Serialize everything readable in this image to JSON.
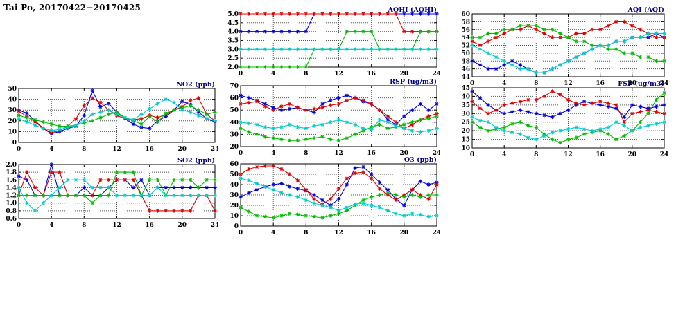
{
  "page": {
    "title": "Tai Po, 20170422−20170425"
  },
  "palette": {
    "chart_title_color": "#000088",
    "series_colors": [
      "#0000dd",
      "#dd0000",
      "#00bb00",
      "#00cccc"
    ]
  },
  "hours": [
    0,
    1,
    2,
    3,
    4,
    5,
    6,
    7,
    8,
    9,
    10,
    11,
    12,
    13,
    14,
    15,
    16,
    17,
    18,
    19,
    20,
    21,
    22,
    23,
    24
  ],
  "chart_data": [
    {
      "id": "aqhi",
      "type": "line",
      "title": "AQHI (AQHI)",
      "xlim": [
        0,
        24
      ],
      "xticks": [
        0,
        4,
        8,
        12,
        16,
        20,
        24
      ],
      "ylim": [
        2.0,
        5.0
      ],
      "yticks": [
        2.0,
        2.5,
        3.0,
        3.5,
        4.0,
        4.5,
        5.0
      ],
      "ytick_labels": [
        "2.0",
        "2.5",
        "3.0",
        "3.5",
        "4.0",
        "4.5",
        "5.0"
      ],
      "grid": true,
      "series": [
        {
          "name": "series-blue",
          "color": "#0000dd",
          "values": [
            4,
            4,
            4,
            4,
            4,
            4,
            4,
            4,
            4,
            5,
            5,
            5,
            5,
            5,
            5,
            5,
            5,
            5,
            5,
            5,
            5,
            5,
            5,
            5,
            5
          ]
        },
        {
          "name": "series-red",
          "color": "#dd0000",
          "values": [
            5,
            5,
            5,
            5,
            5,
            5,
            5,
            5,
            5,
            5,
            5,
            5,
            5,
            5,
            5,
            5,
            5,
            5,
            5,
            5,
            4,
            4,
            4,
            4,
            4
          ]
        },
        {
          "name": "series-green",
          "color": "#00bb00",
          "values": [
            2,
            2,
            2,
            2,
            2,
            2,
            2,
            2,
            2,
            3,
            3,
            3,
            3,
            4,
            4,
            4,
            4,
            3,
            3,
            3,
            3,
            3,
            4,
            4,
            4
          ]
        },
        {
          "name": "series-cyan",
          "color": "#00cccc",
          "values": [
            3,
            3,
            3,
            3,
            3,
            3,
            3,
            3,
            3,
            3,
            3,
            3,
            3,
            3,
            3,
            3,
            3,
            3,
            3,
            3,
            3,
            3,
            3,
            3,
            3
          ]
        }
      ]
    },
    {
      "id": "aqi",
      "type": "line",
      "title": "AQI (AQI)",
      "xlim": [
        0,
        24
      ],
      "xticks": [
        0,
        4,
        8,
        12,
        16,
        20,
        24
      ],
      "ylim": [
        44,
        60
      ],
      "yticks": [
        44,
        46,
        48,
        50,
        52,
        54,
        56,
        58,
        60
      ],
      "ytick_labels": [
        "44",
        "46",
        "48",
        "50",
        "52",
        "54",
        "56",
        "58",
        "60"
      ],
      "grid": true,
      "series": [
        {
          "name": "series-blue",
          "color": "#0000dd",
          "values": [
            48,
            47,
            46,
            46,
            47,
            48,
            47,
            46,
            45,
            45,
            46,
            47,
            48,
            49,
            50,
            51,
            52,
            52,
            53,
            53,
            54,
            54,
            54,
            55,
            54
          ]
        },
        {
          "name": "series-red",
          "color": "#dd0000",
          "values": [
            53,
            52,
            53,
            54,
            55,
            56,
            56,
            57,
            56,
            55,
            54,
            54,
            54,
            55,
            55,
            56,
            56,
            57,
            58,
            58,
            57,
            56,
            55,
            54,
            54
          ]
        },
        {
          "name": "series-green",
          "color": "#00bb00",
          "values": [
            54,
            54,
            55,
            55,
            56,
            56,
            57,
            57,
            57,
            56,
            56,
            55,
            54,
            53,
            53,
            52,
            52,
            51,
            51,
            50,
            50,
            49,
            49,
            48,
            48
          ]
        },
        {
          "name": "series-cyan",
          "color": "#00cccc",
          "values": [
            52,
            51,
            50,
            49,
            48,
            47,
            46,
            46,
            45,
            45,
            46,
            47,
            48,
            49,
            50,
            51,
            52,
            52,
            53,
            53,
            54,
            54,
            55,
            55,
            55
          ]
        }
      ]
    },
    {
      "id": "no2",
      "type": "line",
      "title": "NO2 (ppb)",
      "xlim": [
        0,
        24
      ],
      "xticks": [
        0,
        4,
        8,
        12,
        16,
        20,
        24
      ],
      "ylim": [
        0,
        50
      ],
      "yticks": [
        0,
        10,
        20,
        30,
        40,
        50
      ],
      "ytick_labels": [
        "0",
        "10",
        "20",
        "30",
        "40",
        "50"
      ],
      "grid": true,
      "series": [
        {
          "name": "series-blue",
          "color": "#0000dd",
          "values": [
            30,
            27,
            20,
            13,
            8,
            10,
            13,
            15,
            25,
            48,
            33,
            36,
            28,
            22,
            17,
            14,
            13,
            20,
            24,
            30,
            38,
            35,
            28,
            22,
            19
          ]
        },
        {
          "name": "series-red",
          "color": "#dd0000",
          "values": [
            29,
            24,
            19,
            13,
            9,
            11,
            15,
            22,
            34,
            41,
            37,
            30,
            25,
            22,
            21,
            22,
            25,
            23,
            26,
            30,
            33,
            39,
            41,
            26,
            20
          ]
        },
        {
          "name": "series-green",
          "color": "#00bb00",
          "values": [
            25,
            23,
            21,
            19,
            17,
            15,
            15,
            16,
            18,
            20,
            23,
            26,
            28,
            23,
            20,
            17,
            24,
            19,
            27,
            30,
            32,
            34,
            30,
            26,
            28
          ]
        },
        {
          "name": "series-cyan",
          "color": "#00cccc",
          "values": [
            22,
            19,
            16,
            13,
            11,
            12,
            14,
            16,
            20,
            26,
            28,
            30,
            26,
            23,
            21,
            26,
            31,
            36,
            40,
            37,
            30,
            28,
            25,
            22,
            20
          ]
        }
      ]
    },
    {
      "id": "rsp",
      "type": "line",
      "title": "RSP (ug/m3)",
      "xlim": [
        0,
        24
      ],
      "xticks": [
        0,
        4,
        8,
        12,
        16,
        20,
        24
      ],
      "ylim": [
        20,
        70
      ],
      "yticks": [
        20,
        30,
        40,
        50,
        60,
        70
      ],
      "ytick_labels": [
        "20",
        "30",
        "40",
        "50",
        "60",
        "70"
      ],
      "grid": true,
      "series": [
        {
          "name": "series-blue",
          "color": "#0000dd",
          "values": [
            62,
            60,
            58,
            55,
            52,
            50,
            51,
            52,
            50,
            48,
            55,
            58,
            60,
            62,
            60,
            57,
            55,
            50,
            42,
            38,
            45,
            50,
            55,
            50,
            55
          ]
        },
        {
          "name": "series-red",
          "color": "#dd0000",
          "values": [
            55,
            56,
            57,
            53,
            50,
            53,
            55,
            52,
            50,
            51,
            52,
            54,
            55,
            58,
            60,
            58,
            55,
            50,
            45,
            40,
            35,
            38,
            42,
            45,
            47
          ]
        },
        {
          "name": "series-green",
          "color": "#00bb00",
          "values": [
            35,
            32,
            30,
            28,
            27,
            26,
            25,
            25,
            26,
            27,
            28,
            26,
            25,
            27,
            30,
            33,
            36,
            38,
            35,
            36,
            38,
            40,
            42,
            43,
            45
          ]
        },
        {
          "name": "series-cyan",
          "color": "#00cccc",
          "values": [
            40,
            39,
            38,
            36,
            35,
            36,
            38,
            36,
            35,
            37,
            38,
            40,
            42,
            40,
            38,
            35,
            34,
            42,
            40,
            37,
            35,
            33,
            32,
            33,
            35
          ]
        }
      ]
    },
    {
      "id": "fsp",
      "type": "line",
      "title": "FSP (ug/m3)",
      "xlim": [
        0,
        24
      ],
      "xticks": [
        0,
        4,
        8,
        12,
        16,
        20,
        24
      ],
      "ylim": [
        10,
        45
      ],
      "yticks": [
        10,
        15,
        20,
        25,
        30,
        35,
        40,
        45
      ],
      "ytick_labels": [
        "10",
        "15",
        "20",
        "25",
        "30",
        "35",
        "40",
        "45"
      ],
      "grid": true,
      "series": [
        {
          "name": "series-blue",
          "color": "#0000dd",
          "values": [
            43,
            39,
            35,
            32,
            30,
            31,
            32,
            31,
            30,
            29,
            28,
            30,
            32,
            35,
            37,
            36,
            35,
            34,
            33,
            28,
            35,
            34,
            33,
            34,
            35
          ]
        },
        {
          "name": "series-red",
          "color": "#dd0000",
          "values": [
            37,
            33,
            30,
            32,
            35,
            36,
            37,
            38,
            38,
            40,
            43,
            41,
            38,
            36,
            35,
            36,
            37,
            36,
            35,
            25,
            30,
            31,
            32,
            31,
            30
          ]
        },
        {
          "name": "series-green",
          "color": "#00bb00",
          "values": [
            25,
            22,
            20,
            21,
            22,
            24,
            25,
            23,
            22,
            18,
            15,
            13,
            15,
            16,
            18,
            19,
            20,
            18,
            15,
            17,
            20,
            25,
            30,
            38,
            42
          ]
        },
        {
          "name": "series-cyan",
          "color": "#00cccc",
          "values": [
            28,
            26,
            25,
            22,
            20,
            19,
            18,
            16,
            15,
            17,
            19,
            20,
            21,
            22,
            21,
            20,
            21,
            22,
            25,
            23,
            20,
            22,
            23,
            24,
            25
          ]
        }
      ]
    },
    {
      "id": "so2",
      "type": "line",
      "title": "SO2 (ppb)",
      "xlim": [
        0,
        24
      ],
      "xticks": [
        0,
        4,
        8,
        12,
        16,
        20,
        24
      ],
      "ylim": [
        0.6,
        2.0
      ],
      "yticks": [
        0.6,
        0.8,
        1.0,
        1.2,
        1.4,
        1.6,
        1.8,
        2.0
      ],
      "ytick_labels": [
        "0.6",
        "0.8",
        "1.0",
        "1.2",
        "1.4",
        "1.6",
        "1.8",
        "2.0"
      ],
      "grid": true,
      "series": [
        {
          "name": "series-blue",
          "color": "#0000dd",
          "values": [
            1.7,
            1.6,
            1.2,
            1.2,
            2.0,
            1.2,
            1.2,
            1.2,
            1.4,
            1.2,
            1.2,
            1.4,
            1.6,
            1.6,
            1.4,
            1.6,
            1.2,
            1.4,
            1.4,
            1.4,
            1.4,
            1.4,
            1.4,
            1.4,
            1.4
          ]
        },
        {
          "name": "series-red",
          "color": "#dd0000",
          "values": [
            1.2,
            1.8,
            1.4,
            1.2,
            1.8,
            1.8,
            1.2,
            1.2,
            1.2,
            1.2,
            1.6,
            1.6,
            1.6,
            1.6,
            1.6,
            1.2,
            0.8,
            0.8,
            0.8,
            0.8,
            0.8,
            0.8,
            1.2,
            1.2,
            0.8
          ]
        },
        {
          "name": "series-green",
          "color": "#00bb00",
          "values": [
            1.2,
            1.2,
            1.2,
            1.2,
            1.2,
            1.2,
            1.2,
            1.2,
            1.2,
            1.0,
            1.2,
            1.2,
            1.8,
            1.8,
            1.8,
            1.2,
            1.6,
            1.6,
            1.2,
            1.6,
            1.6,
            1.6,
            1.4,
            1.6,
            1.6
          ]
        },
        {
          "name": "series-cyan",
          "color": "#00cccc",
          "values": [
            1.4,
            1.0,
            0.8,
            1.0,
            1.2,
            1.4,
            1.6,
            1.6,
            1.6,
            1.4,
            1.4,
            1.4,
            1.2,
            1.2,
            1.2,
            1.2,
            1.2,
            1.4,
            1.2,
            1.2,
            1.2,
            1.2,
            1.2,
            1.2,
            1.2
          ]
        }
      ]
    },
    {
      "id": "o3",
      "type": "line",
      "title": "O3 (ppb)",
      "xlim": [
        0,
        24
      ],
      "xticks": [
        0,
        4,
        8,
        12,
        16,
        20,
        24
      ],
      "ylim": [
        0,
        60
      ],
      "yticks": [
        0,
        10,
        20,
        30,
        40,
        50,
        60
      ],
      "ytick_labels": [
        "0",
        "10",
        "20",
        "30",
        "40",
        "50",
        "60"
      ],
      "grid": true,
      "series": [
        {
          "name": "series-blue",
          "color": "#0000dd",
          "values": [
            28,
            32,
            35,
            38,
            40,
            41,
            38,
            36,
            34,
            30,
            25,
            20,
            26,
            40,
            56,
            57,
            50,
            42,
            35,
            26,
            20,
            35,
            43,
            40,
            42
          ]
        },
        {
          "name": "series-red",
          "color": "#dd0000",
          "values": [
            50,
            55,
            57,
            58,
            58,
            55,
            50,
            44,
            35,
            26,
            21,
            26,
            36,
            46,
            51,
            52,
            46,
            36,
            30,
            25,
            30,
            35,
            30,
            26,
            40
          ]
        },
        {
          "name": "series-green",
          "color": "#00bb00",
          "values": [
            18,
            14,
            10,
            9,
            8,
            10,
            12,
            11,
            10,
            9,
            8,
            10,
            12,
            15,
            20,
            25,
            28,
            30,
            32,
            30,
            28,
            30,
            28,
            30,
            30
          ]
        },
        {
          "name": "series-cyan",
          "color": "#00cccc",
          "values": [
            46,
            44,
            41,
            38,
            35,
            32,
            30,
            28,
            25,
            22,
            20,
            18,
            15,
            18,
            21,
            22,
            20,
            18,
            15,
            12,
            10,
            12,
            11,
            9,
            10
          ]
        }
      ]
    }
  ]
}
